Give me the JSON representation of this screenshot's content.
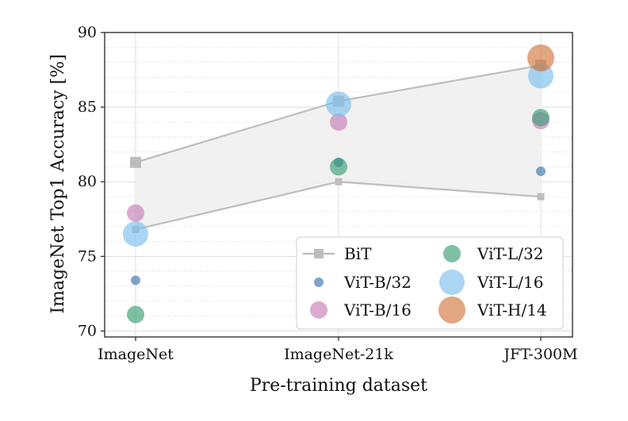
{
  "chart_data": {
    "type": "scatter",
    "xlabel": "Pre-training dataset",
    "ylabel": "ImageNet Top1 Accuracy [%]",
    "categories": [
      "ImageNet",
      "ImageNet-21k",
      "JFT-300M"
    ],
    "ylim": [
      69.6,
      90
    ],
    "yticks": [
      70,
      75,
      80,
      85,
      90
    ],
    "grid": true,
    "legend_position": "lower-right",
    "bit_band": {
      "name": "BiT",
      "upper": [
        81.3,
        85.4,
        87.8
      ],
      "lower": [
        76.8,
        80.0,
        79.0
      ],
      "color": "#bdbdbd",
      "fill": "#f0f0f0"
    },
    "series": [
      {
        "name": "ViT-B/32",
        "color": "#3b75af",
        "size": 6,
        "values": [
          73.4,
          81.3,
          80.7
        ]
      },
      {
        "name": "ViT-B/16",
        "color": "#c77eb5",
        "size": 11,
        "values": [
          77.9,
          84.0,
          84.1
        ]
      },
      {
        "name": "ViT-L/32",
        "color": "#3a9e75",
        "size": 11,
        "values": [
          71.1,
          81.0,
          84.3
        ]
      },
      {
        "name": "ViT-L/16",
        "color": "#7cbfed",
        "size": 16,
        "values": [
          76.5,
          85.2,
          87.1
        ]
      },
      {
        "name": "ViT-H/14",
        "color": "#d2773d",
        "size": 17,
        "values": [
          null,
          null,
          88.3
        ]
      }
    ]
  },
  "legend": [
    {
      "label": "BiT",
      "kind": "bit"
    },
    {
      "label": "ViT-L/32",
      "kind": "ViT-L/32"
    },
    {
      "label": "ViT-B/32",
      "kind": "ViT-B/32"
    },
    {
      "label": "ViT-L/16",
      "kind": "ViT-L/16"
    },
    {
      "label": "ViT-B/16",
      "kind": "ViT-B/16"
    },
    {
      "label": "ViT-H/14",
      "kind": "ViT-H/14"
    }
  ]
}
